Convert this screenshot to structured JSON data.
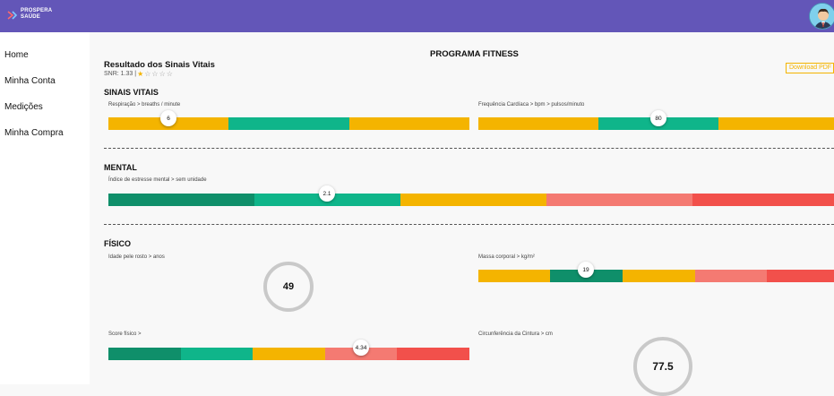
{
  "header": {
    "logo_line1": "PROSPERA",
    "logo_line2": "SAÚDE",
    "colors": {
      "bar": "#6356b8"
    }
  },
  "sidebar": {
    "items": [
      {
        "label": "Home"
      },
      {
        "label": "Minha Conta"
      },
      {
        "label": "Medições"
      },
      {
        "label": "Minha Compra"
      }
    ]
  },
  "page": {
    "title": "PROGRAMA FITNESS",
    "result_title": "Resultado dos Sinais Vitais",
    "snr": "SNR: 1.33 |",
    "rating": 1,
    "rating_max": 5,
    "download_label": "Download PDF"
  },
  "sections": {
    "vitals": "SINAIS VITAIS",
    "mental": "MENTAL",
    "physical": "FÍSICO"
  },
  "metrics": {
    "respiration": {
      "label": "Respiração >  breaths / minute",
      "value": "6"
    },
    "heart_rate": {
      "label": "Frequência Cardíaca > bpm >  pulsos/minuto",
      "value": "80"
    },
    "stress": {
      "label": "Índice de estresse mental > sem unidade",
      "value": "2.1"
    },
    "face_age": {
      "label": "Idade pele rosto > anos",
      "value": "49"
    },
    "bmi": {
      "label": "Massa corporal > kg/m²",
      "value": "19"
    },
    "fitness_score": {
      "label": "Score físico >",
      "value": "4.34"
    },
    "waist": {
      "label": "Circunferência da Cintura > cm",
      "value": "77.5"
    }
  },
  "colors": {
    "yellow": "#f4b400",
    "teal": "#0fb58a",
    "dark_green": "#0f8f6a",
    "salmon": "#f47a72",
    "red": "#f2504b"
  }
}
